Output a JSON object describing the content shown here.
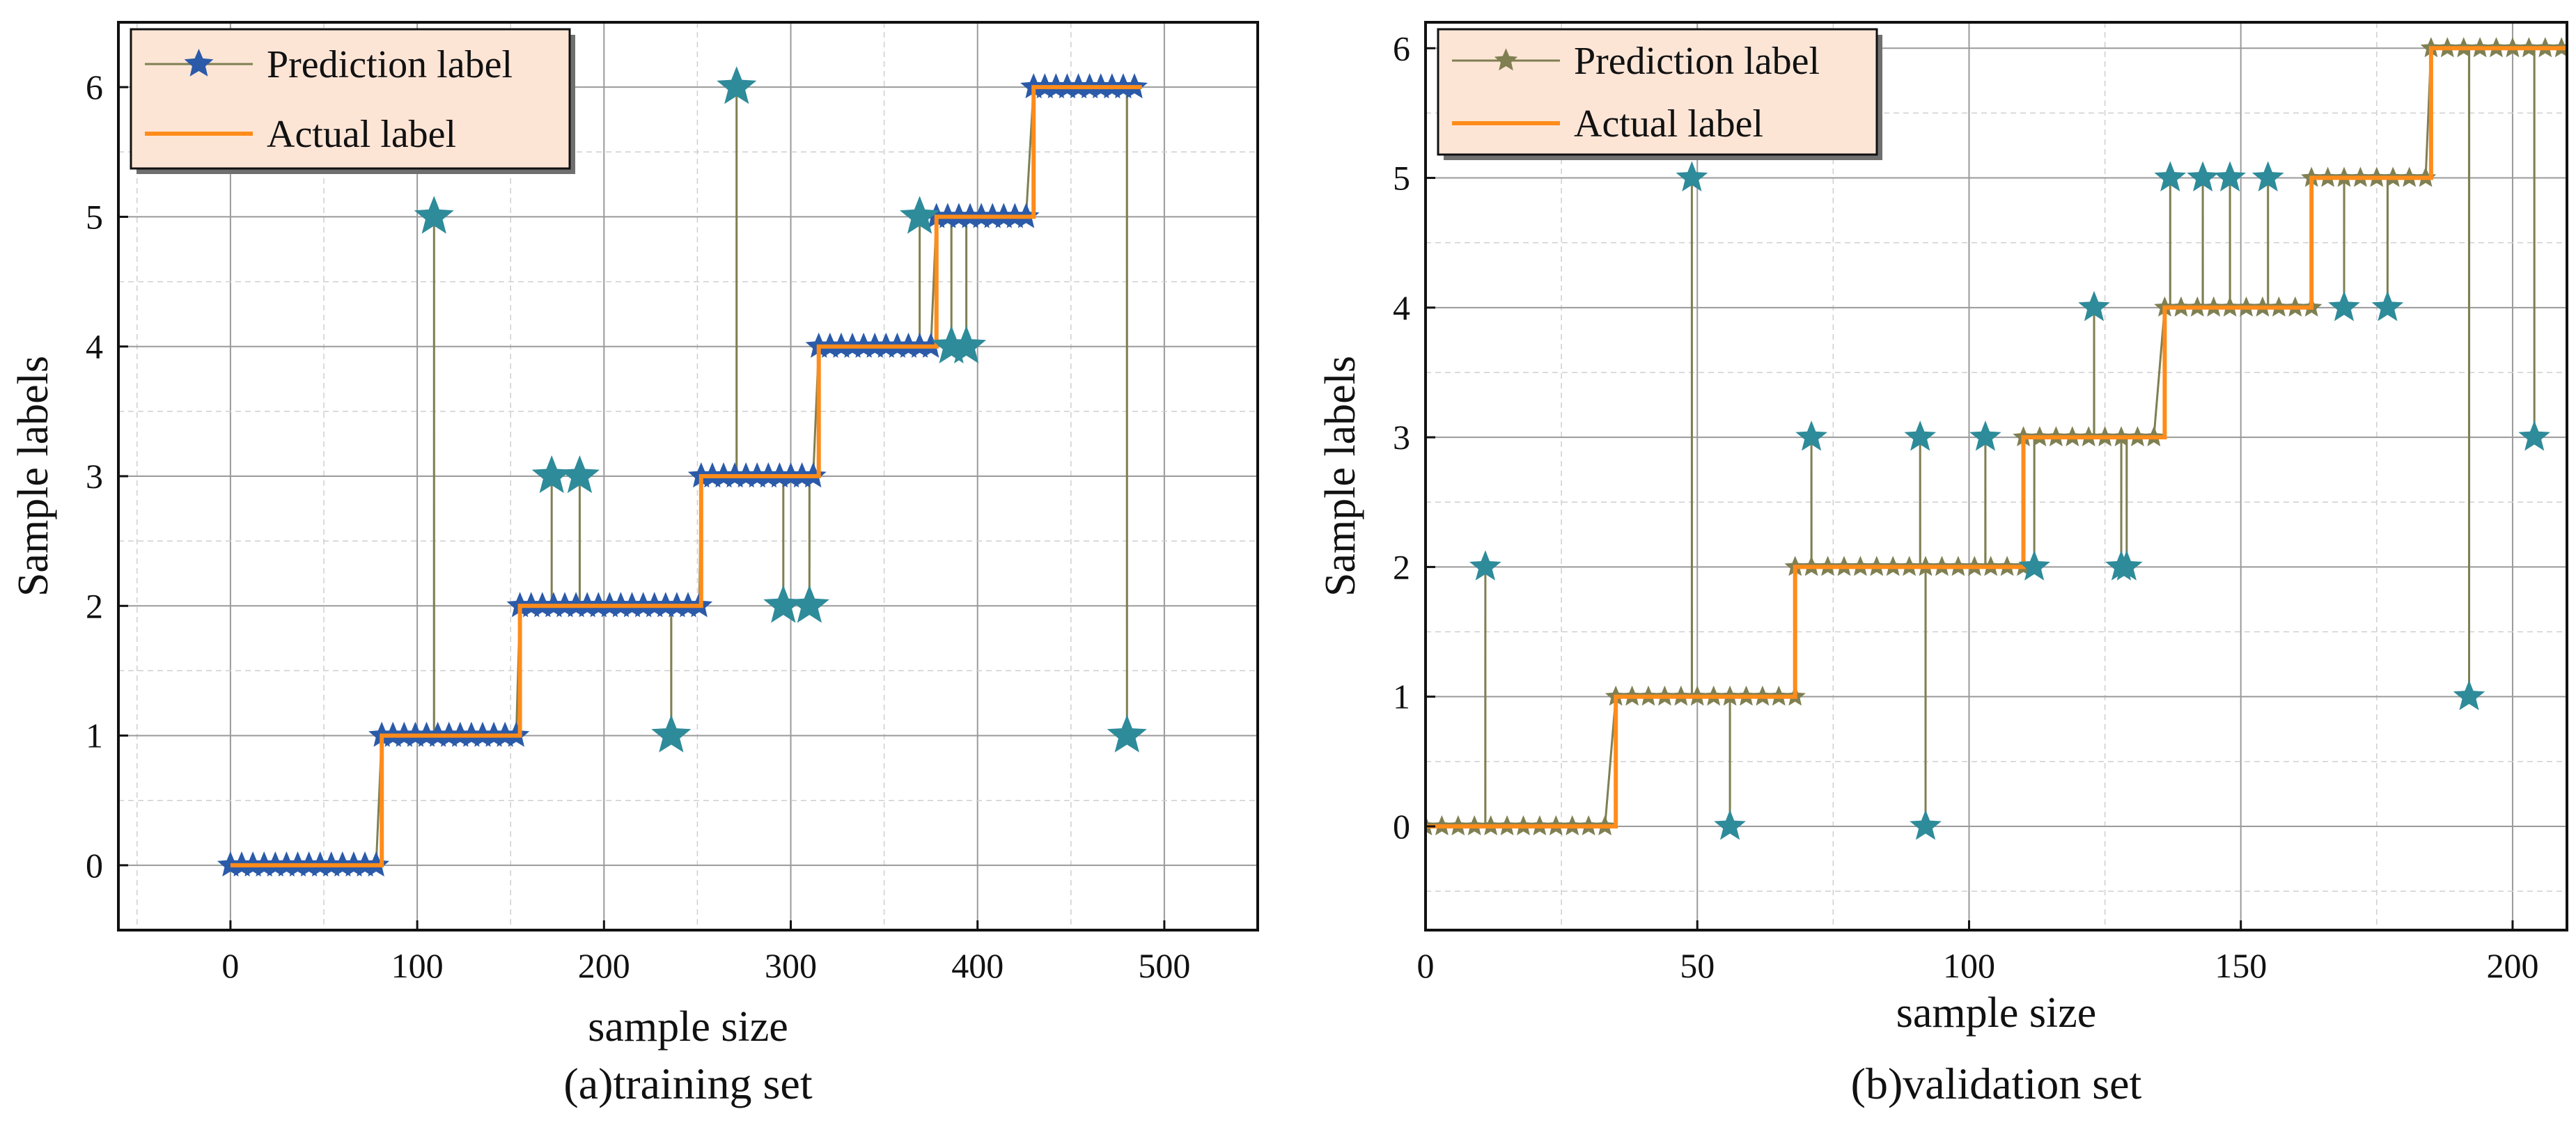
{
  "chart_data": [
    {
      "type": "line",
      "caption": "(a)training set",
      "xlabel": "sample size",
      "ylabel": "Sample labels",
      "xlim": [
        -60,
        550
      ],
      "ylim": [
        -0.5,
        6.5
      ],
      "xticks": [
        "0",
        "100",
        "200",
        "300",
        "400",
        "500"
      ],
      "yticks": [
        "0",
        "1",
        "2",
        "3",
        "4",
        "5",
        "6"
      ],
      "grid": true,
      "legend_position": "top-left",
      "colors": {
        "prediction_line": "#7f7f52",
        "prediction_marker": "#2b5aa8",
        "outlier_marker": "#2e8b9a",
        "actual": "#ff8c1a",
        "legend_bg": "#fde5d6"
      },
      "legend": [
        {
          "label": "Prediction label",
          "kind": "prediction"
        },
        {
          "label": "Actual label",
          "kind": "actual"
        }
      ],
      "actual_steps": [
        {
          "x0": 0,
          "x1": 81,
          "y": 0
        },
        {
          "x0": 81,
          "x1": 155,
          "y": 1
        },
        {
          "x0": 155,
          "x1": 252,
          "y": 2
        },
        {
          "x0": 252,
          "x1": 315,
          "y": 3
        },
        {
          "x0": 315,
          "x1": 378,
          "y": 4
        },
        {
          "x0": 378,
          "x1": 430,
          "y": 5
        },
        {
          "x0": 430,
          "x1": 488,
          "y": 6
        }
      ],
      "prediction_outliers": [
        {
          "x": 109,
          "y": 5
        },
        {
          "x": 172,
          "y": 3
        },
        {
          "x": 187,
          "y": 3
        },
        {
          "x": 236,
          "y": 1
        },
        {
          "x": 271,
          "y": 6
        },
        {
          "x": 296,
          "y": 2
        },
        {
          "x": 310,
          "y": 2
        },
        {
          "x": 369,
          "y": 5
        },
        {
          "x": 386,
          "y": 4
        },
        {
          "x": 394,
          "y": 4
        },
        {
          "x": 480,
          "y": 1
        }
      ],
      "marker_spacing": 6
    },
    {
      "type": "line",
      "caption": "(b)validation set",
      "xlabel": "sample size",
      "ylabel": "Sample labels",
      "xlim": [
        0,
        210
      ],
      "ylim": [
        -0.8,
        6.2
      ],
      "xticks": [
        "0",
        "50",
        "100",
        "150",
        "200"
      ],
      "yticks": [
        "0",
        "1",
        "2",
        "3",
        "4",
        "5",
        "6"
      ],
      "grid": true,
      "legend_position": "top-left",
      "colors": {
        "prediction_line": "#7f7f52",
        "prediction_marker": "#7f7f52",
        "outlier_marker": "#2e8b9a",
        "actual": "#ff8c1a",
        "legend_bg": "#fde5d6"
      },
      "legend": [
        {
          "label": "Prediction label",
          "kind": "prediction"
        },
        {
          "label": "Actual label",
          "kind": "actual"
        }
      ],
      "actual_steps": [
        {
          "x0": 0,
          "x1": 35,
          "y": 0
        },
        {
          "x0": 35,
          "x1": 68,
          "y": 1
        },
        {
          "x0": 68,
          "x1": 110,
          "y": 2
        },
        {
          "x0": 110,
          "x1": 136,
          "y": 3
        },
        {
          "x0": 136,
          "x1": 163,
          "y": 4
        },
        {
          "x0": 163,
          "x1": 185,
          "y": 5
        },
        {
          "x0": 185,
          "x1": 210,
          "y": 6
        }
      ],
      "prediction_outliers": [
        {
          "x": 11,
          "y": 2
        },
        {
          "x": 49,
          "y": 5
        },
        {
          "x": 56,
          "y": 0
        },
        {
          "x": 71,
          "y": 3
        },
        {
          "x": 91,
          "y": 3
        },
        {
          "x": 92,
          "y": 0
        },
        {
          "x": 103,
          "y": 3
        },
        {
          "x": 112,
          "y": 2
        },
        {
          "x": 123,
          "y": 4
        },
        {
          "x": 128,
          "y": 2
        },
        {
          "x": 129,
          "y": 2
        },
        {
          "x": 137,
          "y": 5
        },
        {
          "x": 143,
          "y": 5
        },
        {
          "x": 148,
          "y": 5
        },
        {
          "x": 155,
          "y": 5
        },
        {
          "x": 169,
          "y": 4
        },
        {
          "x": 177,
          "y": 4
        },
        {
          "x": 192,
          "y": 1
        },
        {
          "x": 204,
          "y": 3
        }
      ],
      "marker_spacing": 3
    }
  ]
}
